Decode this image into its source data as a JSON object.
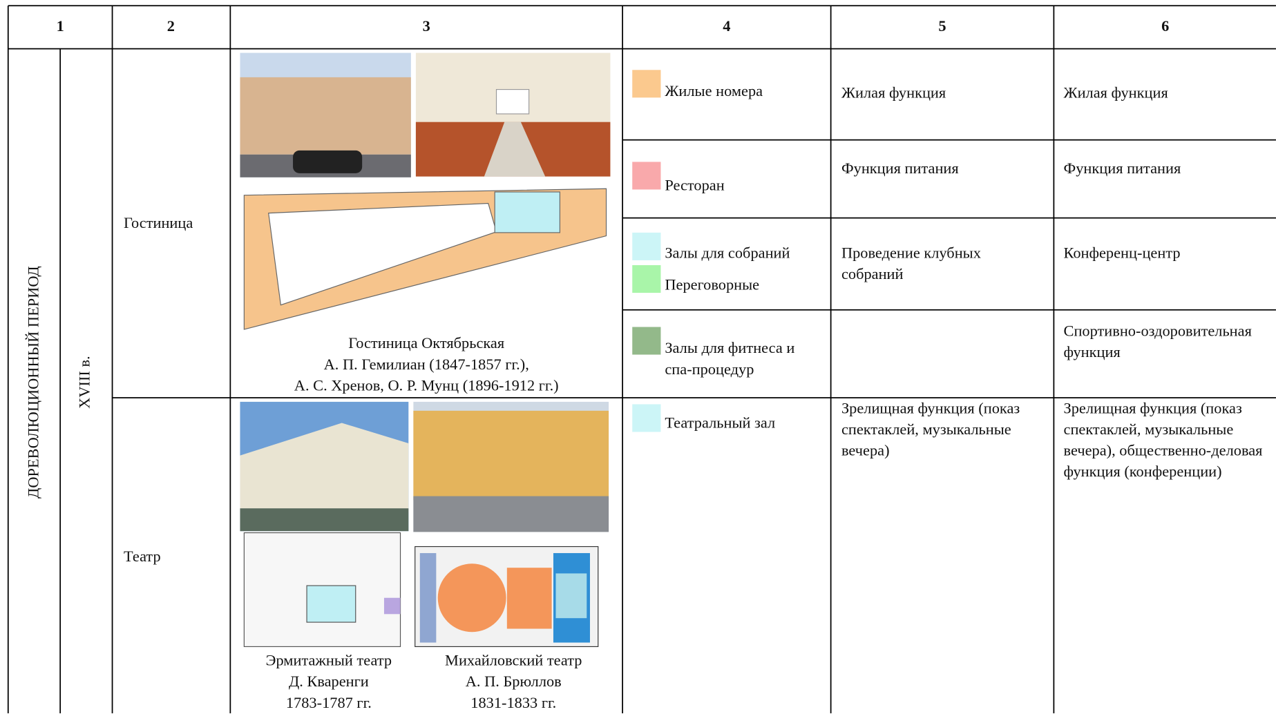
{
  "table": {
    "header": [
      "1",
      "2",
      "3",
      "4",
      "5",
      "6"
    ],
    "period": "ДОРЕВОЛЮЦИОННЫЙ ПЕРИОД",
    "century": "XVIII в.",
    "rows": [
      {
        "type": "Гостиница",
        "captions": [
          [
            "Гостиница Октябрьская",
            "А. П. Гемилиан (1847-1857 гг.),",
            "А. С. Хренов, О. Р. Мунц (1896-1912 гг.)"
          ]
        ],
        "zones": [
          {
            "items": [
              {
                "label": "Жилые номера",
                "color": "#fbc98e"
              }
            ],
            "function": "Жилая функция",
            "purpose": "Жилая функция"
          },
          {
            "items": [
              {
                "label": "Ресторан",
                "color": "#f9a9ab"
              }
            ],
            "function": "Функция питания",
            "purpose": "Функция питания"
          },
          {
            "items": [
              {
                "label": "Залы для собраний",
                "color": "#ccf5f7"
              },
              {
                "label": "Переговорные",
                "color": "#a9f5a9"
              }
            ],
            "function": "Проведение клубных собраний",
            "purpose": "Конференц-центр"
          },
          {
            "items": [
              {
                "label": "Залы для фитнеса и спа-процедур",
                "color": "#93b98a"
              }
            ],
            "purpose": "Спортивно-оздоровительная функция"
          }
        ]
      },
      {
        "type": "Театр",
        "captions": [
          [
            "Эрмитажный театр",
            "Д. Кваренги",
            "1783-1787 гг."
          ],
          [
            "Михайловский театр",
            "А. П. Брюллов",
            "1831-1833 гг."
          ]
        ],
        "zones": [
          {
            "items": [
              {
                "label": "Театральный зал",
                "color": "#ccf5f7"
              }
            ],
            "function": "Зрелищная функция (показ спектаклей, музыкальные вечера)",
            "purpose": "Зрелищная функция (показ спектаклей, музыкальные вечера), общественно-деловая функция (конференции)"
          }
        ]
      }
    ]
  }
}
